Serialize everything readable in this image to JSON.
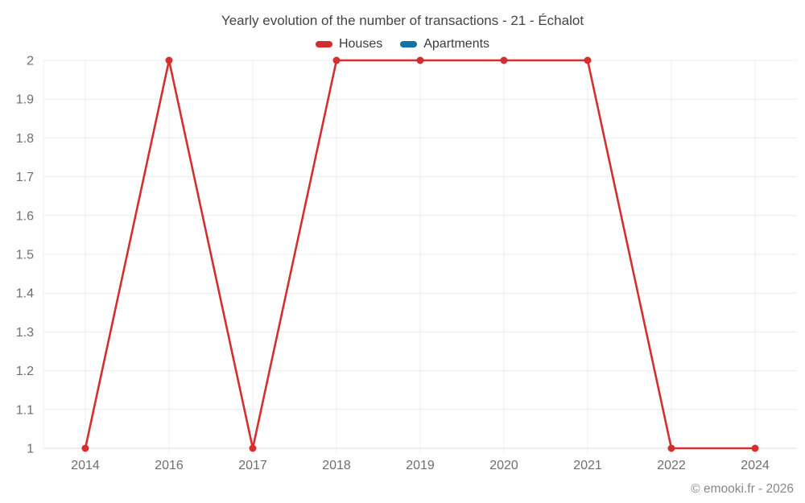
{
  "chart_data": {
    "type": "line",
    "title": "Yearly evolution of the number of transactions - 21 - Échalot",
    "categories": [
      "2014",
      "2016",
      "2017",
      "2018",
      "2019",
      "2020",
      "2021",
      "2022",
      "2024"
    ],
    "series": [
      {
        "name": "Houses",
        "color": "#d32f2f",
        "values": [
          1,
          2,
          1,
          2,
          2,
          2,
          2,
          1,
          1
        ]
      },
      {
        "name": "Apartments",
        "color": "#1273a5",
        "values": []
      }
    ],
    "xlabel": "",
    "ylabel": "",
    "ylim": [
      1,
      2
    ],
    "yticks": [
      1,
      1.1,
      1.2,
      1.3,
      1.4,
      1.5,
      1.6,
      1.7,
      1.8,
      1.9,
      2
    ],
    "ytick_labels": [
      "1",
      "1.1",
      "1.2",
      "1.3",
      "1.4",
      "1.5",
      "1.6",
      "1.7",
      "1.8",
      "1.9",
      "2"
    ],
    "grid": true,
    "legend_position": "top"
  },
  "watermark": "© emooki.fr - 2026",
  "style": {
    "grid_color": "#ececec",
    "axis_line_color": "#dcdcdc",
    "tick_label_color": "#6f6f6f",
    "point_radius": 4.5,
    "line_width": 2.6
  }
}
